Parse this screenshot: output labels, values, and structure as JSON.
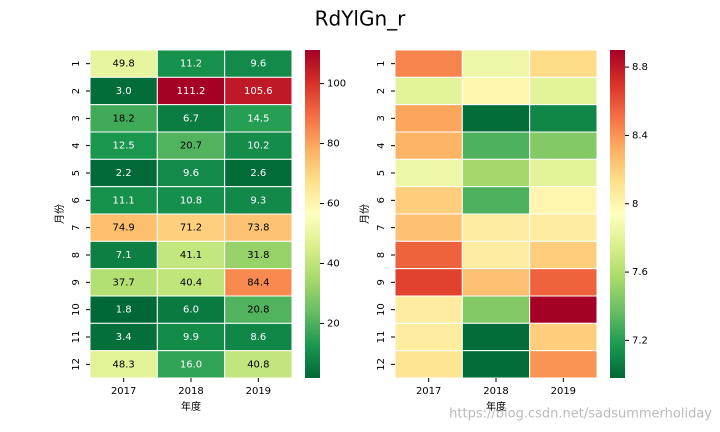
{
  "title": "RdYlGn_r",
  "colormap": [
    "#006837",
    "#1a9850",
    "#66bd63",
    "#a6d96a",
    "#d9ef8b",
    "#ffffbf",
    "#fee08b",
    "#fdae61",
    "#f46d43",
    "#d73027",
    "#a50026"
  ],
  "watermark": "https://blog.csdn.net/sadsummerholiday",
  "chart_data": [
    {
      "type": "heatmap",
      "xlabel": "年度",
      "ylabel": "月份",
      "x_categories": [
        "2017",
        "2018",
        "2019"
      ],
      "y_categories": [
        "1",
        "2",
        "3",
        "4",
        "5",
        "6",
        "7",
        "8",
        "9",
        "10",
        "11",
        "12"
      ],
      "values": [
        [
          49.8,
          11.2,
          9.6
        ],
        [
          3.0,
          111.2,
          105.6
        ],
        [
          18.2,
          6.7,
          14.5
        ],
        [
          12.5,
          20.7,
          10.2
        ],
        [
          2.2,
          9.6,
          2.6
        ],
        [
          11.1,
          10.8,
          9.3
        ],
        [
          74.9,
          71.2,
          73.8
        ],
        [
          7.1,
          41.1,
          31.8
        ],
        [
          37.7,
          40.4,
          84.4
        ],
        [
          1.8,
          6.0,
          20.8
        ],
        [
          3.4,
          9.9,
          8.6
        ],
        [
          48.3,
          16.0,
          40.8
        ]
      ],
      "value_labels": [
        [
          "49.8",
          "11.2",
          "9.6"
        ],
        [
          "3.0",
          "111.2",
          "105.6"
        ],
        [
          "18.2",
          "6.7",
          "14.5"
        ],
        [
          "12.5",
          "20.7",
          "10.2"
        ],
        [
          "2.2",
          "9.6",
          "2.6"
        ],
        [
          "11.1",
          "10.8",
          "9.3"
        ],
        [
          "74.9",
          "71.2",
          "73.8"
        ],
        [
          "7.1",
          "41.1",
          "31.8"
        ],
        [
          "37.7",
          "40.4",
          "84.4"
        ],
        [
          "1.8",
          "6.0",
          "20.8"
        ],
        [
          "3.4",
          "9.9",
          "8.6"
        ],
        [
          "48.3",
          "16.0",
          "40.8"
        ]
      ],
      "clim": [
        1.8,
        111.2
      ],
      "cticks": [
        20,
        40,
        60,
        80,
        100
      ]
    },
    {
      "type": "heatmap",
      "xlabel": "年度",
      "ylabel": "月份",
      "x_categories": [
        "2017",
        "2018",
        "2019"
      ],
      "y_categories": [
        "1",
        "2",
        "3",
        "4",
        "5",
        "6",
        "7",
        "8",
        "9",
        "10",
        "11",
        "12"
      ],
      "values": [
        [
          8.45,
          7.85,
          8.15
        ],
        [
          7.8,
          8.0,
          7.8
        ],
        [
          8.35,
          7.0,
          7.1
        ],
        [
          8.3,
          7.3,
          7.45
        ],
        [
          7.85,
          7.55,
          7.8
        ],
        [
          8.2,
          7.3,
          8.0
        ],
        [
          8.25,
          8.05,
          8.05
        ],
        [
          8.55,
          8.05,
          8.2
        ],
        [
          8.65,
          8.25,
          8.55
        ],
        [
          8.05,
          7.45,
          8.9
        ],
        [
          8.05,
          7.0,
          8.2
        ],
        [
          8.1,
          7.0,
          8.4
        ]
      ],
      "clim": [
        6.98,
        8.9
      ],
      "cticks": [
        7.2,
        7.6,
        8.0,
        8.4,
        8.8
      ]
    }
  ]
}
